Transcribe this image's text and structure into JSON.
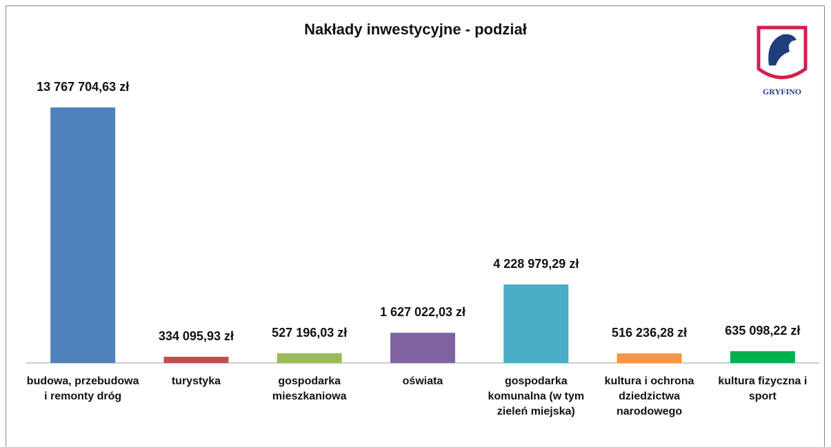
{
  "chart_data": {
    "type": "bar",
    "title": "Nakłady inwestycyjne - podział",
    "categories": [
      "budowa, przebudowa i remonty dróg",
      "turystyka",
      "gospodarka mieszkaniowa",
      "oświata",
      "gospodarka komunalna (w tym zieleń miejska)",
      "kultura i ochrona dziedzictwa narodowego",
      "kultura fizyczna i sport"
    ],
    "values": [
      13767704.63,
      334095.93,
      527196.03,
      1627022.03,
      4228979.29,
      516236.28,
      635098.22
    ],
    "value_labels": [
      "13 767 704,63 zł",
      "334 095,93 zł",
      "527 196,03 zł",
      "1 627 022,03 zł",
      "4 228 979,29 zł",
      "516 236,28 zł",
      "635 098,22 zł"
    ],
    "colors": [
      "#4f81bd",
      "#c0504d",
      "#9bbb59",
      "#8064a2",
      "#4bacc6",
      "#f79646",
      "#00b050"
    ]
  },
  "logo_text": "GRYFINO"
}
